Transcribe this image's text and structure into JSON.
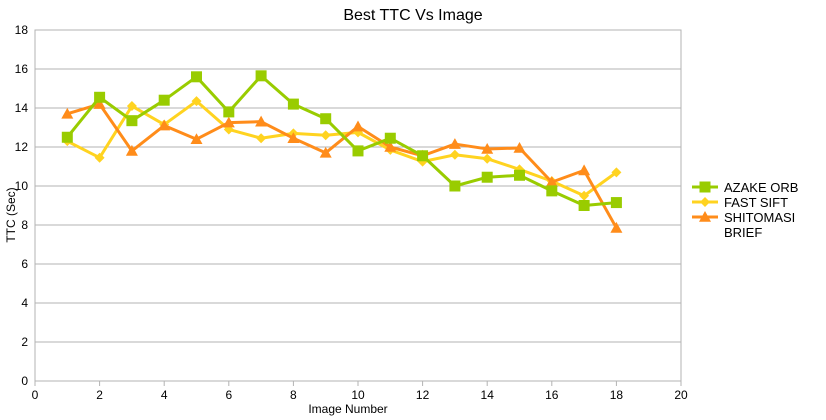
{
  "chart_data": {
    "type": "line",
    "title": "Best TTC Vs Image",
    "xlabel": "Image Number",
    "ylabel": "TTC (Sec)",
    "xlim": [
      0,
      20
    ],
    "ylim": [
      0,
      18
    ],
    "xticks": [
      0,
      2,
      4,
      6,
      8,
      10,
      12,
      14,
      16,
      18,
      20
    ],
    "yticks": [
      0,
      2,
      4,
      6,
      8,
      10,
      12,
      14,
      16,
      18
    ],
    "grid": "horizontal",
    "legend_position": "right",
    "x": [
      1,
      2,
      3,
      4,
      5,
      6,
      7,
      8,
      9,
      10,
      11,
      12,
      13,
      14,
      15,
      16,
      17,
      18
    ],
    "series": [
      {
        "name": "AZAKE ORB",
        "color": "#99cc00",
        "marker": "square",
        "values": [
          12.5,
          14.55,
          13.35,
          14.4,
          15.6,
          13.8,
          15.65,
          14.2,
          13.45,
          11.8,
          12.45,
          11.55,
          10.0,
          10.45,
          10.55,
          9.75,
          9.0,
          9.15
        ]
      },
      {
        "name": "FAST SIFT",
        "color": "#ffd320",
        "marker": "diamond",
        "values": [
          12.3,
          11.45,
          14.1,
          13.15,
          14.35,
          12.9,
          12.45,
          12.7,
          12.6,
          12.75,
          11.85,
          11.25,
          11.6,
          11.4,
          10.85,
          10.25,
          9.5,
          10.7
        ]
      },
      {
        "name": "SHITOMASI BRIEF",
        "color": "#ff8c1a",
        "marker": "triangle",
        "values": [
          13.7,
          14.2,
          11.8,
          13.1,
          12.4,
          13.25,
          13.3,
          12.45,
          11.7,
          13.05,
          12.0,
          11.55,
          12.15,
          11.9,
          11.95,
          10.2,
          10.8,
          7.85
        ]
      }
    ]
  }
}
